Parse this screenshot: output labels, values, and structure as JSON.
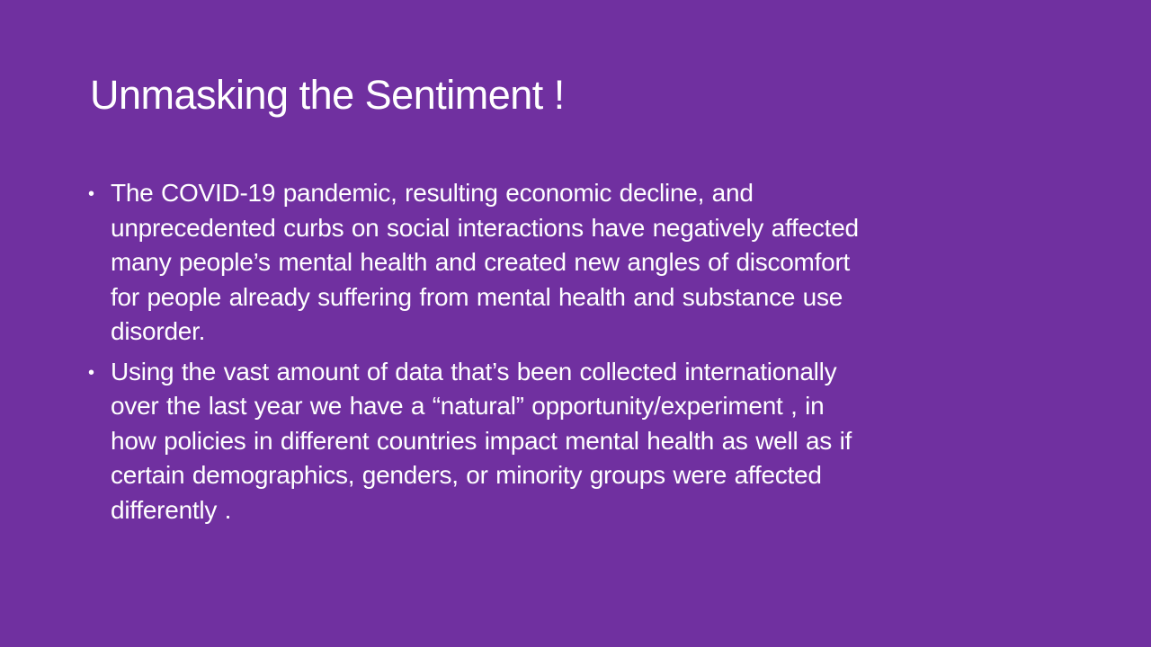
{
  "slide": {
    "title": "Unmasking the Sentiment !",
    "background_color": "#7030a0",
    "text_color": "#ffffff",
    "bullet_glyph": "•",
    "bullets": [
      {
        "lines": [
          "The COVID-19 pandemic, resulting economic decline, and",
          "unprecedented curbs on social interactions have negatively affected",
          "many people’s mental health and created new angles of discomfort",
          "for people already suffering from mental health and substance use",
          "disorder."
        ]
      },
      {
        "lines": [
          "Using the vast amount of data that’s been collected internationally",
          "over the last year we have a “natural” opportunity/experiment , in",
          "how policies in different countries impact mental health as well as if",
          "certain demographics, genders, or minority groups were affected",
          "differently ."
        ]
      }
    ]
  }
}
